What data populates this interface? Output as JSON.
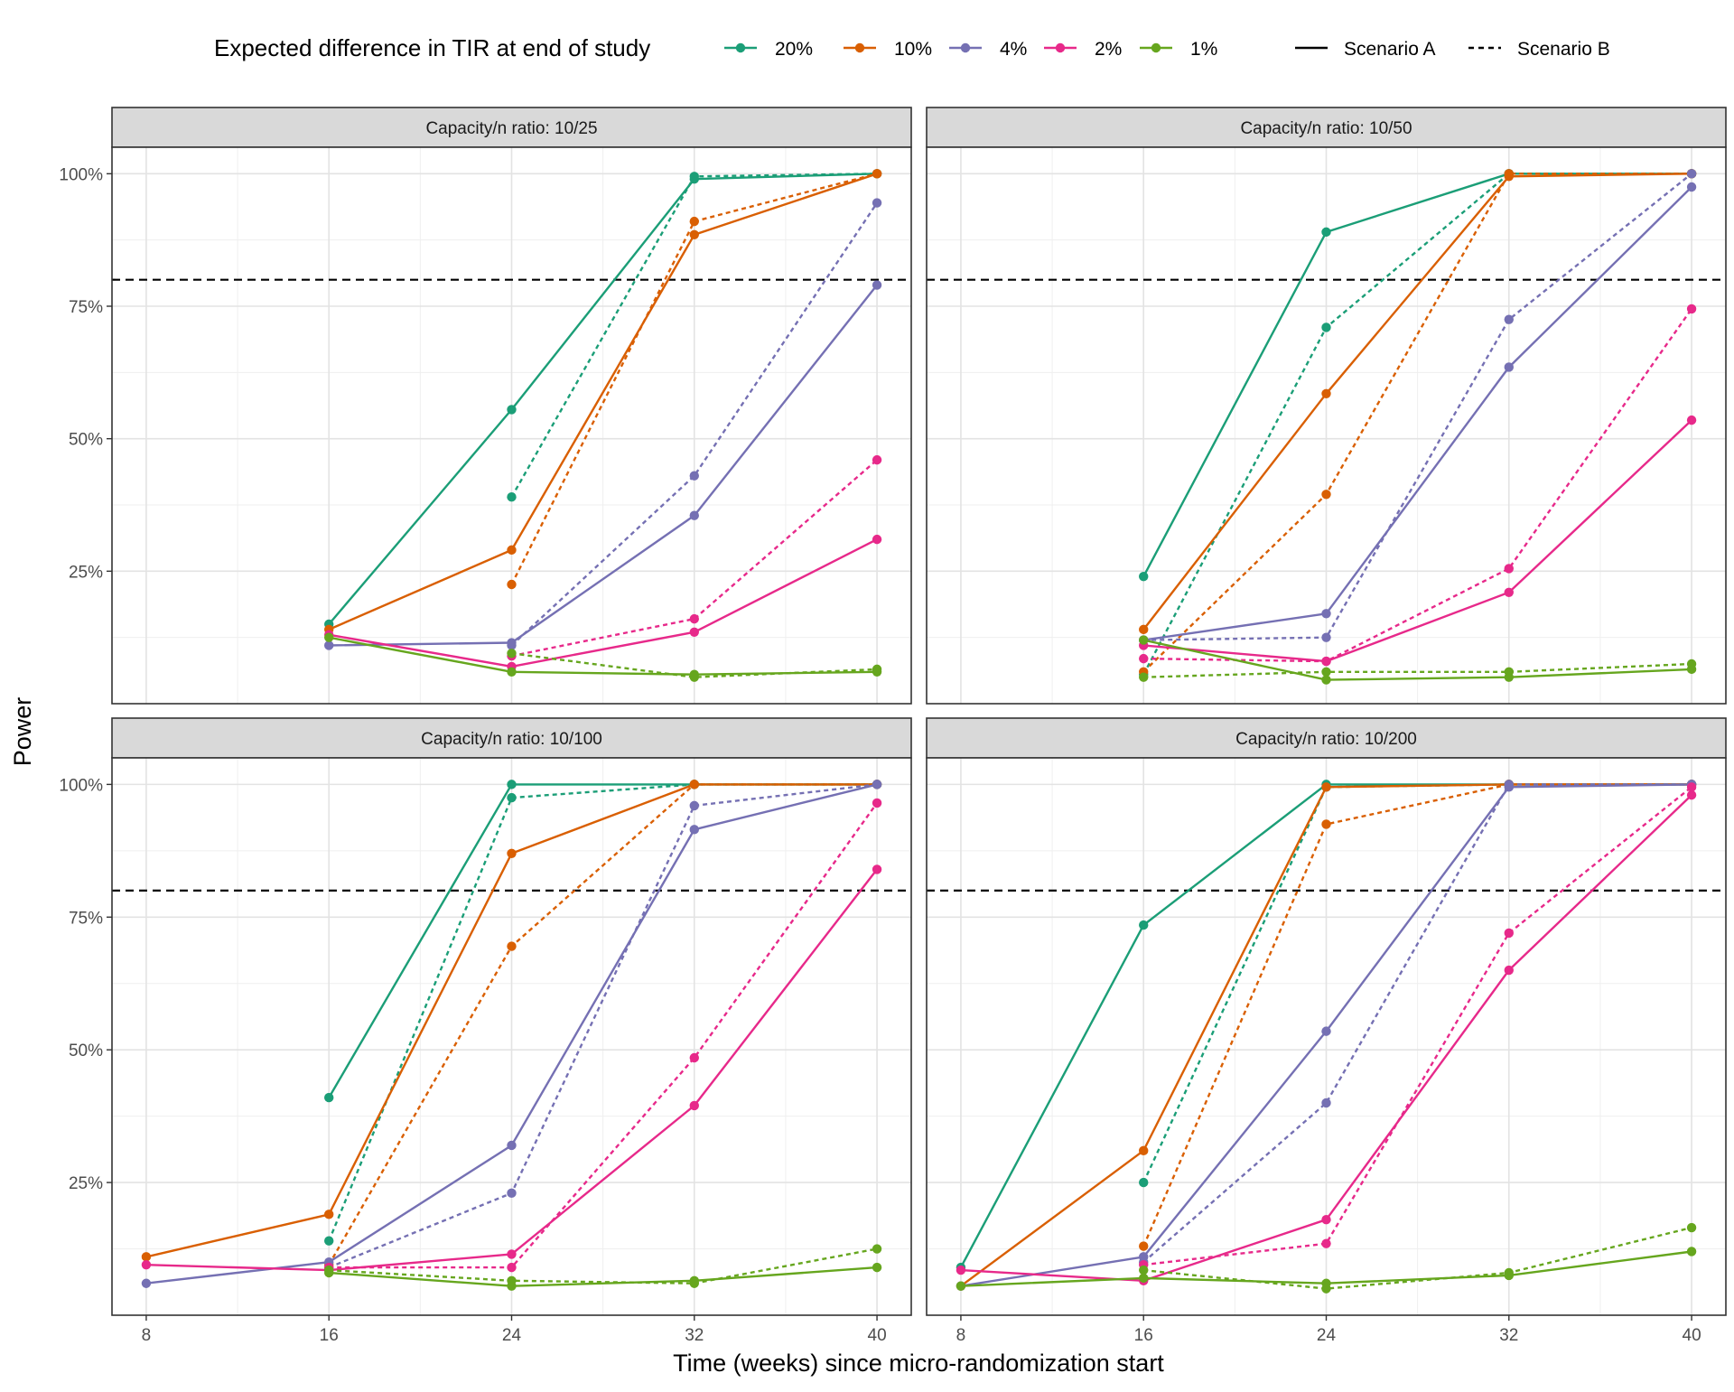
{
  "chart_data": {
    "type": "line",
    "title": "",
    "xlabel": "Time (weeks) since micro-randomization start",
    "ylabel": "Power",
    "x_ticks": [
      8,
      16,
      24,
      32,
      40
    ],
    "x_range": [
      6.5,
      41.5
    ],
    "y_ticks": [
      25,
      50,
      75,
      100
    ],
    "y_tick_labels": [
      "25%",
      "50%",
      "75%",
      "100%"
    ],
    "y_range": [
      0,
      105
    ],
    "reference_line": {
      "y": 80,
      "style": "dashed",
      "color": "#000000"
    },
    "grid": true,
    "legend": {
      "placement": "top",
      "color_title": "Expected difference in TIR at end of study",
      "colors": [
        {
          "label": "20%",
          "color": "#1B9E77"
        },
        {
          "label": "10%",
          "color": "#D95F02"
        },
        {
          "label": "4%",
          "color": "#7570B3"
        },
        {
          "label": "2%",
          "color": "#E7298A"
        },
        {
          "label": "1%",
          "color": "#66A61E"
        }
      ],
      "linetypes": [
        {
          "label": "Scenario A",
          "dash": "solid"
        },
        {
          "label": "Scenario B",
          "dash": "dashed"
        }
      ]
    },
    "panels": [
      {
        "title": "Capacity/n ratio: 10/25",
        "show_y_axis": true,
        "show_x_axis": false,
        "series": [
          {
            "difference": "20%",
            "scenario": "Scenario A",
            "x": [
              16,
              24,
              32,
              40
            ],
            "y": [
              15,
              55.5,
              99,
              100
            ]
          },
          {
            "difference": "20%",
            "scenario": "Scenario B",
            "x": [
              24,
              32,
              40
            ],
            "y": [
              39,
              99.5,
              100
            ]
          },
          {
            "difference": "10%",
            "scenario": "Scenario A",
            "x": [
              16,
              24,
              32,
              40
            ],
            "y": [
              14,
              29,
              88.5,
              100
            ]
          },
          {
            "difference": "10%",
            "scenario": "Scenario B",
            "x": [
              24,
              32,
              40
            ],
            "y": [
              22.5,
              91,
              100
            ]
          },
          {
            "difference": "4%",
            "scenario": "Scenario A",
            "x": [
              16,
              24,
              32,
              40
            ],
            "y": [
              11,
              11.5,
              35.5,
              79
            ]
          },
          {
            "difference": "4%",
            "scenario": "Scenario B",
            "x": [
              24,
              32,
              40
            ],
            "y": [
              11,
              43,
              94.5
            ]
          },
          {
            "difference": "2%",
            "scenario": "Scenario A",
            "x": [
              16,
              24,
              32,
              40
            ],
            "y": [
              13,
              7,
              13.5,
              31
            ]
          },
          {
            "difference": "2%",
            "scenario": "Scenario B",
            "x": [
              24,
              32,
              40
            ],
            "y": [
              9,
              16,
              46
            ]
          },
          {
            "difference": "1%",
            "scenario": "Scenario A",
            "x": [
              16,
              24,
              32,
              40
            ],
            "y": [
              12.5,
              6,
              5.5,
              6
            ]
          },
          {
            "difference": "1%",
            "scenario": "Scenario B",
            "x": [
              24,
              32,
              40
            ],
            "y": [
              9.5,
              5,
              6.5
            ]
          }
        ]
      },
      {
        "title": "Capacity/n ratio: 10/50",
        "show_y_axis": false,
        "show_x_axis": false,
        "series": [
          {
            "difference": "20%",
            "scenario": "Scenario A",
            "x": [
              16,
              24,
              32,
              40
            ],
            "y": [
              24,
              89,
              100,
              100
            ]
          },
          {
            "difference": "20%",
            "scenario": "Scenario B",
            "x": [
              16,
              24,
              32,
              40
            ],
            "y": [
              5.5,
              71,
              100,
              100
            ]
          },
          {
            "difference": "10%",
            "scenario": "Scenario A",
            "x": [
              16,
              24,
              32,
              40
            ],
            "y": [
              14,
              58.5,
              99.5,
              100
            ]
          },
          {
            "difference": "10%",
            "scenario": "Scenario B",
            "x": [
              16,
              24,
              32,
              40
            ],
            "y": [
              6,
              39.5,
              100,
              100
            ]
          },
          {
            "difference": "4%",
            "scenario": "Scenario A",
            "x": [
              16,
              24,
              32,
              40
            ],
            "y": [
              12,
              17,
              63.5,
              97.5
            ]
          },
          {
            "difference": "4%",
            "scenario": "Scenario B",
            "x": [
              16,
              24,
              32,
              40
            ],
            "y": [
              12,
              12.5,
              72.5,
              100
            ]
          },
          {
            "difference": "2%",
            "scenario": "Scenario A",
            "x": [
              16,
              24,
              32,
              40
            ],
            "y": [
              11,
              8,
              21,
              53.5
            ]
          },
          {
            "difference": "2%",
            "scenario": "Scenario B",
            "x": [
              16,
              24,
              32,
              40
            ],
            "y": [
              8.5,
              8,
              25.5,
              74.5
            ]
          },
          {
            "difference": "1%",
            "scenario": "Scenario A",
            "x": [
              16,
              24,
              32,
              40
            ],
            "y": [
              12,
              4.5,
              5,
              6.5
            ]
          },
          {
            "difference": "1%",
            "scenario": "Scenario B",
            "x": [
              16,
              24,
              32,
              40
            ],
            "y": [
              5,
              6,
              6,
              7.5
            ]
          }
        ]
      },
      {
        "title": "Capacity/n ratio: 10/100",
        "show_y_axis": true,
        "show_x_axis": true,
        "series": [
          {
            "difference": "20%",
            "scenario": "Scenario A",
            "x": [
              16,
              24,
              32,
              40
            ],
            "y": [
              41,
              100,
              100,
              100
            ]
          },
          {
            "difference": "20%",
            "scenario": "Scenario B",
            "x": [
              16,
              24,
              32,
              40
            ],
            "y": [
              14,
              97.5,
              100,
              100
            ]
          },
          {
            "difference": "10%",
            "scenario": "Scenario A",
            "x": [
              8,
              16,
              24,
              32,
              40
            ],
            "y": [
              11,
              19,
              87,
              100,
              100
            ]
          },
          {
            "difference": "10%",
            "scenario": "Scenario B",
            "x": [
              16,
              24,
              32,
              40
            ],
            "y": [
              9.5,
              69.5,
              100,
              100
            ]
          },
          {
            "difference": "4%",
            "scenario": "Scenario A",
            "x": [
              8,
              16,
              24,
              32,
              40
            ],
            "y": [
              6,
              10,
              32,
              91.5,
              100
            ]
          },
          {
            "difference": "4%",
            "scenario": "Scenario B",
            "x": [
              16,
              24,
              32,
              40
            ],
            "y": [
              9,
              23,
              96,
              100
            ]
          },
          {
            "difference": "2%",
            "scenario": "Scenario A",
            "x": [
              8,
              16,
              24,
              32,
              40
            ],
            "y": [
              9.5,
              8.5,
              11.5,
              39.5,
              84
            ]
          },
          {
            "difference": "2%",
            "scenario": "Scenario B",
            "x": [
              16,
              24,
              32,
              40
            ],
            "y": [
              9,
              9,
              48.5,
              96.5
            ]
          },
          {
            "difference": "1%",
            "scenario": "Scenario A",
            "x": [
              16,
              24,
              32,
              40
            ],
            "y": [
              8,
              5.5,
              6.5,
              9
            ]
          },
          {
            "difference": "1%",
            "scenario": "Scenario B",
            "x": [
              16,
              24,
              32,
              40
            ],
            "y": [
              8.5,
              6.5,
              6,
              12.5
            ]
          }
        ]
      },
      {
        "title": "Capacity/n ratio: 10/200",
        "show_y_axis": false,
        "show_x_axis": true,
        "series": [
          {
            "difference": "20%",
            "scenario": "Scenario A",
            "x": [
              8,
              16,
              24,
              32,
              40
            ],
            "y": [
              9,
              73.5,
              100,
              100,
              100
            ]
          },
          {
            "difference": "20%",
            "scenario": "Scenario B",
            "x": [
              16,
              24,
              32,
              40
            ],
            "y": [
              25,
              99.5,
              100,
              100
            ]
          },
          {
            "difference": "10%",
            "scenario": "Scenario A",
            "x": [
              8,
              16,
              24,
              32,
              40
            ],
            "y": [
              5.5,
              31,
              99.5,
              100,
              100
            ]
          },
          {
            "difference": "10%",
            "scenario": "Scenario B",
            "x": [
              16,
              24,
              32,
              40
            ],
            "y": [
              13,
              92.5,
              100,
              100
            ]
          },
          {
            "difference": "4%",
            "scenario": "Scenario A",
            "x": [
              8,
              16,
              24,
              32,
              40
            ],
            "y": [
              5.5,
              11,
              53.5,
              99.5,
              100
            ]
          },
          {
            "difference": "4%",
            "scenario": "Scenario B",
            "x": [
              16,
              24,
              32,
              40
            ],
            "y": [
              10,
              40,
              100,
              100
            ]
          },
          {
            "difference": "2%",
            "scenario": "Scenario A",
            "x": [
              8,
              16,
              24,
              32,
              40
            ],
            "y": [
              8.5,
              6.5,
              18,
              65,
              98
            ]
          },
          {
            "difference": "2%",
            "scenario": "Scenario B",
            "x": [
              16,
              24,
              32,
              40
            ],
            "y": [
              9.5,
              13.5,
              72,
              99.5
            ]
          },
          {
            "difference": "1%",
            "scenario": "Scenario A",
            "x": [
              8,
              16,
              24,
              32,
              40
            ],
            "y": [
              5.5,
              7,
              6,
              7.5,
              12
            ]
          },
          {
            "difference": "1%",
            "scenario": "Scenario B",
            "x": [
              16,
              24,
              32,
              40
            ],
            "y": [
              8.5,
              5,
              8,
              16.5
            ]
          }
        ]
      }
    ]
  }
}
